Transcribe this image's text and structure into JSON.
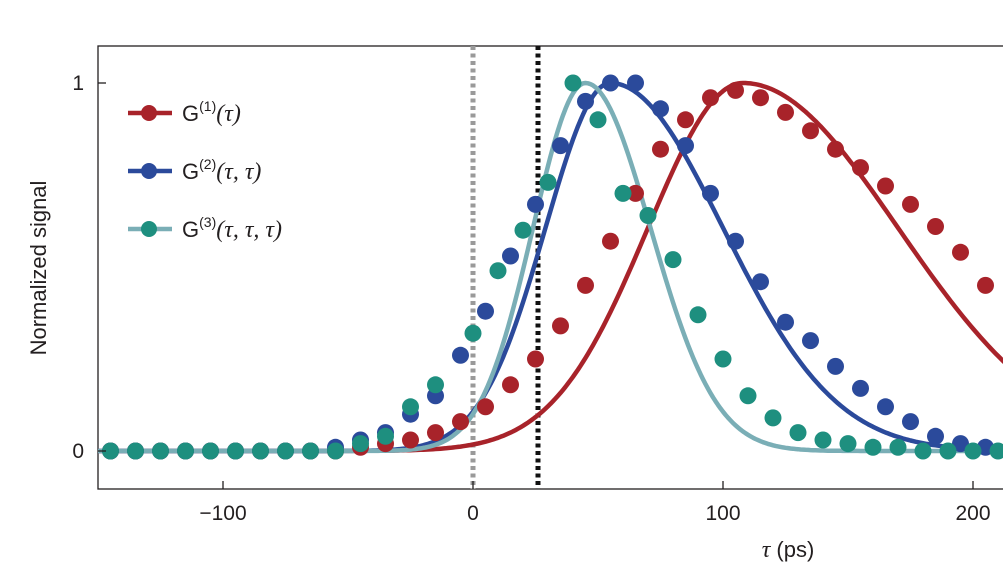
{
  "chart_data": {
    "type": "line",
    "xlabel_symbol": "τ",
    "xlabel_unit": " (ps)",
    "ylabel": "Normalized signal",
    "xlim": [
      -150,
      212
    ],
    "ylim": [
      -0.1,
      1.1
    ],
    "xticks": [
      -100,
      0,
      100,
      200
    ],
    "xtick_labels": [
      "−100",
      "0",
      "100",
      "200"
    ],
    "yticks": [
      0,
      1
    ],
    "ytick_labels": [
      "0",
      "1"
    ],
    "vlines": [
      {
        "x": 0,
        "color": "#9a9a9a",
        "style": "dotted"
      },
      {
        "x": 26,
        "color": "#111111",
        "style": "dotted"
      }
    ],
    "legend_position": "top-left",
    "series": [
      {
        "name": "G^{(1)}(τ)",
        "legend_base": "G",
        "legend_sup": "(1)",
        "legend_args": "(τ)",
        "color": "#a8232a",
        "fit": {
          "peak": 108,
          "sigma_left": 38,
          "sigma_right": 62
        },
        "points": [
          [
            -145,
            0
          ],
          [
            -135,
            0
          ],
          [
            -125,
            0
          ],
          [
            -115,
            0
          ],
          [
            -105,
            0
          ],
          [
            -95,
            0
          ],
          [
            -85,
            0
          ],
          [
            -75,
            0
          ],
          [
            -65,
            0
          ],
          [
            -55,
            0
          ],
          [
            -45,
            0.01
          ],
          [
            -35,
            0.02
          ],
          [
            -25,
            0.03
          ],
          [
            -15,
            0.05
          ],
          [
            -5,
            0.08
          ],
          [
            5,
            0.12
          ],
          [
            15,
            0.18
          ],
          [
            25,
            0.25
          ],
          [
            35,
            0.34
          ],
          [
            45,
            0.45
          ],
          [
            55,
            0.57
          ],
          [
            65,
            0.7
          ],
          [
            75,
            0.82
          ],
          [
            85,
            0.9
          ],
          [
            95,
            0.96
          ],
          [
            105,
            0.98
          ],
          [
            115,
            0.96
          ],
          [
            125,
            0.92
          ],
          [
            135,
            0.87
          ],
          [
            145,
            0.82
          ],
          [
            155,
            0.77
          ],
          [
            165,
            0.72
          ],
          [
            175,
            0.67
          ],
          [
            185,
            0.61
          ],
          [
            195,
            0.54
          ],
          [
            205,
            0.45
          ]
        ]
      },
      {
        "name": "G^{(2)}(τ, τ)",
        "legend_base": "G",
        "legend_sup": "(2)",
        "legend_args": "(τ, τ)",
        "color": "#2b4a9b",
        "fit": {
          "peak": 55,
          "sigma_left": 26,
          "sigma_right": 45
        },
        "points": [
          [
            -145,
            0
          ],
          [
            -135,
            0
          ],
          [
            -125,
            0
          ],
          [
            -115,
            0
          ],
          [
            -105,
            0
          ],
          [
            -95,
            0
          ],
          [
            -85,
            0
          ],
          [
            -75,
            0
          ],
          [
            -65,
            0
          ],
          [
            -55,
            0.01
          ],
          [
            -45,
            0.03
          ],
          [
            -35,
            0.05
          ],
          [
            -25,
            0.1
          ],
          [
            -15,
            0.15
          ],
          [
            -5,
            0.26
          ],
          [
            5,
            0.38
          ],
          [
            15,
            0.53
          ],
          [
            25,
            0.67
          ],
          [
            35,
            0.83
          ],
          [
            45,
            0.95
          ],
          [
            55,
            1.0
          ],
          [
            65,
            1.0
          ],
          [
            75,
            0.93
          ],
          [
            85,
            0.83
          ],
          [
            95,
            0.7
          ],
          [
            105,
            0.57
          ],
          [
            115,
            0.46
          ],
          [
            125,
            0.35
          ],
          [
            135,
            0.3
          ],
          [
            145,
            0.23
          ],
          [
            155,
            0.17
          ],
          [
            165,
            0.12
          ],
          [
            175,
            0.08
          ],
          [
            185,
            0.04
          ],
          [
            195,
            0.02
          ],
          [
            205,
            0.01
          ]
        ]
      },
      {
        "name": "G^{(3)}(τ, τ, τ)",
        "legend_base": "G",
        "legend_sup": "(3)",
        "legend_args": "(τ, τ, τ)",
        "color": "#1e8f7f",
        "fit": {
          "peak": 45,
          "sigma_left": 21,
          "sigma_right": 26,
          "color": "#7aaeb6"
        },
        "points": [
          [
            -145,
            0
          ],
          [
            -135,
            0
          ],
          [
            -125,
            0
          ],
          [
            -115,
            0
          ],
          [
            -105,
            0
          ],
          [
            -95,
            0
          ],
          [
            -85,
            0
          ],
          [
            -75,
            0
          ],
          [
            -65,
            0
          ],
          [
            -55,
            0
          ],
          [
            -45,
            0.02
          ],
          [
            -35,
            0.04
          ],
          [
            -25,
            0.12
          ],
          [
            -15,
            0.18
          ],
          [
            0,
            0.32
          ],
          [
            10,
            0.49
          ],
          [
            20,
            0.6
          ],
          [
            30,
            0.73
          ],
          [
            40,
            1.0
          ],
          [
            50,
            0.9
          ],
          [
            60,
            0.7
          ],
          [
            70,
            0.64
          ],
          [
            80,
            0.52
          ],
          [
            90,
            0.37
          ],
          [
            100,
            0.25
          ],
          [
            110,
            0.15
          ],
          [
            120,
            0.09
          ],
          [
            130,
            0.05
          ],
          [
            140,
            0.03
          ],
          [
            150,
            0.02
          ],
          [
            160,
            0.01
          ],
          [
            170,
            0.01
          ],
          [
            180,
            0
          ],
          [
            190,
            0
          ],
          [
            200,
            0
          ],
          [
            210,
            0
          ]
        ]
      }
    ]
  }
}
